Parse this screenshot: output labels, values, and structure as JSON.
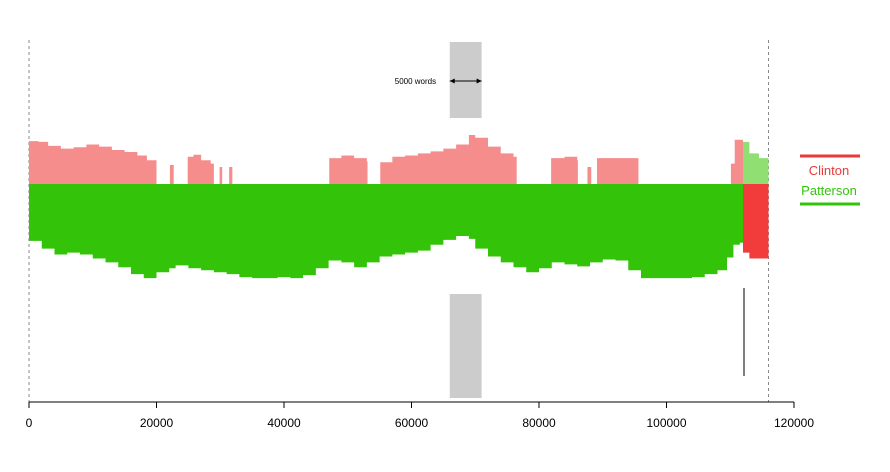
{
  "chart_data": {
    "type": "area",
    "title": "",
    "xlabel": "",
    "ylabel": "",
    "xlim": [
      0,
      120000
    ],
    "x_ticks": [
      0,
      20000,
      40000,
      60000,
      80000,
      100000,
      120000
    ],
    "x_tick_labels": [
      "0",
      "20000",
      "40000",
      "60000",
      "80000",
      "100000",
      "120000"
    ],
    "grid": false,
    "legend_position": "right",
    "legend": [
      {
        "name": "Clinton",
        "color": "#e83a3a"
      },
      {
        "name": "Patterson",
        "color": "#33c40a"
      }
    ],
    "colors": {
      "clinton_light": "#f58d8d",
      "clinton_dark": "#f23b3b",
      "patterson_light": "#8fdf72",
      "patterson_dark": "#33c40a",
      "window_band": "#cccccc",
      "reference_line": "#888888"
    },
    "reference_lines_x": [
      0,
      116000
    ],
    "window": {
      "start": 66000,
      "end": 71000,
      "label": "5000 words"
    },
    "boundary_x": 112000,
    "end_x": 116000,
    "top_series": [
      [
        0,
        0.63
      ],
      [
        1500,
        0.62
      ],
      [
        3000,
        0.56
      ],
      [
        5000,
        0.52
      ],
      [
        7000,
        0.54
      ],
      [
        9000,
        0.58
      ],
      [
        11000,
        0.55
      ],
      [
        13000,
        0.5
      ],
      [
        15000,
        0.47
      ],
      [
        17000,
        0.42
      ],
      [
        18500,
        0.35
      ],
      [
        20000,
        0.0
      ],
      [
        22000,
        0.0
      ],
      [
        22100,
        0.28
      ],
      [
        22600,
        0.28
      ],
      [
        22700,
        0.0
      ],
      [
        24800,
        0.0
      ],
      [
        24900,
        0.4
      ],
      [
        25800,
        0.43
      ],
      [
        27000,
        0.35
      ],
      [
        28500,
        0.3
      ],
      [
        29000,
        0.0
      ],
      [
        29800,
        0.0
      ],
      [
        29900,
        0.25
      ],
      [
        30200,
        0.25
      ],
      [
        30300,
        0.0
      ],
      [
        31300,
        0.0
      ],
      [
        31400,
        0.25
      ],
      [
        31800,
        0.25
      ],
      [
        31900,
        0.0
      ],
      [
        47000,
        0.0
      ],
      [
        47100,
        0.38
      ],
      [
        49000,
        0.42
      ],
      [
        51000,
        0.38
      ],
      [
        53000,
        0.33
      ],
      [
        53100,
        0.0
      ],
      [
        55000,
        0.0
      ],
      [
        55100,
        0.32
      ],
      [
        57000,
        0.4
      ],
      [
        59000,
        0.42
      ],
      [
        61000,
        0.45
      ],
      [
        63000,
        0.48
      ],
      [
        65000,
        0.52
      ],
      [
        67000,
        0.58
      ],
      [
        69000,
        0.72
      ],
      [
        70000,
        0.68
      ],
      [
        72000,
        0.55
      ],
      [
        74000,
        0.45
      ],
      [
        76000,
        0.4
      ],
      [
        76500,
        0.0
      ],
      [
        81800,
        0.0
      ],
      [
        81900,
        0.38
      ],
      [
        84000,
        0.4
      ],
      [
        86000,
        0.35
      ],
      [
        86100,
        0.0
      ],
      [
        87500,
        0.0
      ],
      [
        87600,
        0.25
      ],
      [
        88100,
        0.25
      ],
      [
        88200,
        0.0
      ],
      [
        89000,
        0.0
      ],
      [
        89100,
        0.38
      ],
      [
        92000,
        0.38
      ],
      [
        95500,
        0.38
      ],
      [
        95600,
        0.0
      ],
      [
        110000,
        0.0
      ],
      [
        110100,
        0.3
      ],
      [
        110700,
        0.65
      ],
      [
        112000,
        0.62
      ],
      [
        113000,
        0.45
      ],
      [
        114500,
        0.38
      ],
      [
        116000,
        0.38
      ]
    ],
    "bottom_series": [
      [
        0,
        0.53
      ],
      [
        2000,
        0.58
      ],
      [
        4000,
        0.66
      ],
      [
        6000,
        0.72
      ],
      [
        8000,
        0.7
      ],
      [
        10000,
        0.72
      ],
      [
        12000,
        0.76
      ],
      [
        14000,
        0.8
      ],
      [
        16000,
        0.85
      ],
      [
        18000,
        0.92
      ],
      [
        20000,
        0.96
      ],
      [
        22000,
        0.9
      ],
      [
        23000,
        0.86
      ],
      [
        25000,
        0.83
      ],
      [
        27000,
        0.86
      ],
      [
        29000,
        0.88
      ],
      [
        31000,
        0.9
      ],
      [
        33000,
        0.92
      ],
      [
        35000,
        0.95
      ],
      [
        37000,
        0.96
      ],
      [
        39000,
        0.96
      ],
      [
        41000,
        0.95
      ],
      [
        43000,
        0.96
      ],
      [
        45000,
        0.93
      ],
      [
        47000,
        0.86
      ],
      [
        49000,
        0.78
      ],
      [
        51000,
        0.8
      ],
      [
        53000,
        0.85
      ],
      [
        55000,
        0.8
      ],
      [
        57000,
        0.74
      ],
      [
        59000,
        0.72
      ],
      [
        61000,
        0.7
      ],
      [
        63000,
        0.68
      ],
      [
        65000,
        0.62
      ],
      [
        67000,
        0.57
      ],
      [
        69000,
        0.53
      ],
      [
        70000,
        0.56
      ],
      [
        72000,
        0.66
      ],
      [
        74000,
        0.74
      ],
      [
        76000,
        0.8
      ],
      [
        78000,
        0.85
      ],
      [
        80000,
        0.9
      ],
      [
        82000,
        0.86
      ],
      [
        84000,
        0.8
      ],
      [
        86000,
        0.82
      ],
      [
        88000,
        0.84
      ],
      [
        90000,
        0.8
      ],
      [
        92000,
        0.77
      ],
      [
        94000,
        0.78
      ],
      [
        96000,
        0.88
      ],
      [
        98000,
        0.96
      ],
      [
        100000,
        0.96
      ],
      [
        104000,
        0.96
      ],
      [
        106000,
        0.95
      ],
      [
        108000,
        0.92
      ],
      [
        109500,
        0.88
      ],
      [
        110500,
        0.75
      ],
      [
        111500,
        0.62
      ],
      [
        112000,
        0.6
      ],
      [
        113000,
        0.7
      ],
      [
        114500,
        0.76
      ],
      [
        116000,
        0.76
      ]
    ],
    "marker_line": {
      "x": 112000,
      "from": 0.47,
      "to": 0.95
    }
  }
}
